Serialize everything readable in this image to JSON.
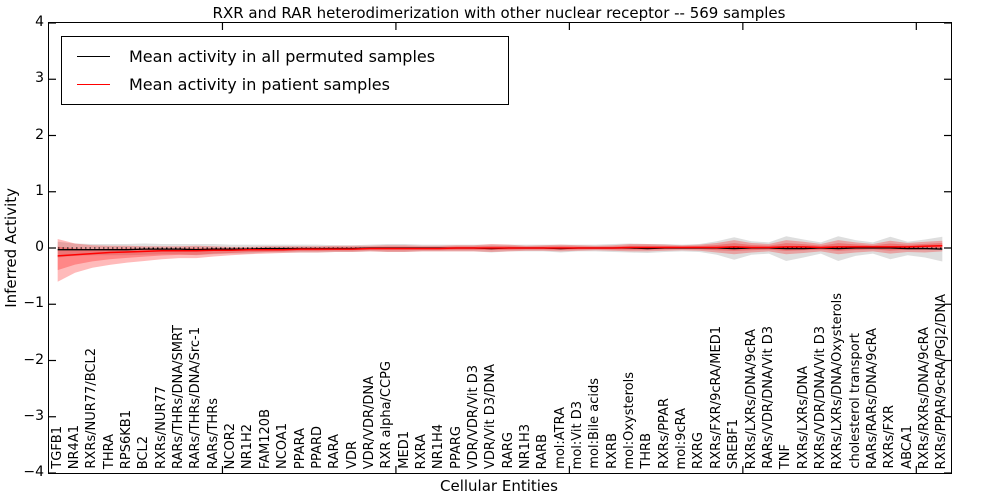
{
  "chart_data": {
    "type": "line",
    "title": "RXR and RAR heterodimerization with other nuclear receptor -- 569 samples",
    "xlabel": "Cellular Entities",
    "ylabel": "Inferred Activity",
    "ylim": [
      -4,
      4
    ],
    "yticks": [
      4,
      3,
      2,
      1,
      0,
      -1,
      -2,
      -3,
      -4
    ],
    "x_major_ticks": [
      10,
      20,
      30,
      40,
      50
    ],
    "grid": false,
    "zero_line": "black dotted",
    "legend_position": "upper left",
    "categories": [
      "TGFB1",
      "NR4A1",
      "RXRs/NUR77/BCL2",
      "THRA",
      "RPS6KB1",
      "BCL2",
      "RXRs/NUR77",
      "RARs/THRs/DNA/SMRT",
      "RARs/THRs/DNA/Src-1",
      "RARs/THRs",
      "NCOR2",
      "NR1H2",
      "FAM120B",
      "NCOA1",
      "PPARA",
      "PPARD",
      "RARA",
      "VDR",
      "VDR/VDR/DNA",
      "RXR alpha/CCPG",
      "MED1",
      "RXRA",
      "NR1H4",
      "PPARG",
      "VDR/VDR/Vit D3",
      "VDR/Vit D3/DNA",
      "RARG",
      "NR1H3",
      "RARB",
      "mol:ATRA",
      "mol:Vit D3",
      "mol:Bile acids",
      "RXRB",
      "mol:Oxysterols",
      "THRB",
      "RXRs/PPAR",
      "mol:9cRA",
      "RXRG",
      "RXRs/FXR/9cRA/MED1",
      "SREBF1",
      "RXRs/LXRs/DNA/9cRA",
      "RARs/VDR/DNA/Vit D3",
      "TNF",
      "RXRs/LXRs/DNA",
      "RXRs/VDR/DNA/Vit D3",
      "RXRs/LXRs/DNA/Oxysterols",
      "cholesterol transport",
      "RARs/RARs/DNA/9cRA",
      "RXRs/FXR",
      "ABCA1",
      "RXRs/RXRs/DNA/9cRA",
      "RXRs/PPAR/9cRA/PGJ2/DNA"
    ],
    "series": [
      {
        "name": "Mean activity in all permuted samples",
        "color": "#000000",
        "values": [
          -0.03,
          -0.03,
          -0.03,
          -0.03,
          -0.03,
          -0.02,
          -0.02,
          -0.02,
          -0.03,
          -0.02,
          -0.02,
          -0.02,
          -0.01,
          -0.01,
          -0.01,
          -0.01,
          -0.01,
          -0.01,
          0,
          0,
          0,
          0,
          0,
          0,
          0,
          -0.01,
          0,
          0,
          0,
          -0.01,
          0,
          0,
          0,
          0,
          -0.01,
          0,
          0,
          0,
          0,
          -0.01,
          0,
          0,
          -0.01,
          -0.01,
          0,
          -0.01,
          0,
          0,
          0,
          -0.01,
          -0.01,
          -0.02
        ]
      },
      {
        "name": "Mean activity in patient samples",
        "color": "#ff0000",
        "values": [
          -0.14,
          -0.12,
          -0.1,
          -0.08,
          -0.07,
          -0.06,
          -0.05,
          -0.05,
          -0.05,
          -0.04,
          -0.04,
          -0.03,
          -0.03,
          -0.03,
          -0.02,
          -0.02,
          -0.02,
          -0.02,
          -0.01,
          -0.01,
          -0.01,
          -0.01,
          -0.01,
          0,
          0,
          0,
          0,
          0,
          0,
          0,
          0,
          0,
          0,
          0.01,
          0.01,
          0.01,
          0.01,
          0.01,
          0.01,
          0.02,
          0.01,
          0.01,
          0.02,
          0.02,
          0.01,
          0.02,
          0.02,
          0.02,
          0.02,
          0.02,
          0.03,
          0.04
        ]
      }
    ],
    "bands": [
      {
        "name": "permuted-std-band",
        "color": "rgba(0,0,0,0.13)",
        "half_width": [
          0.14,
          0.11,
          0.1,
          0.1,
          0.1,
          0.1,
          0.09,
          0.09,
          0.1,
          0.09,
          0.08,
          0.08,
          0.07,
          0.07,
          0.07,
          0.07,
          0.06,
          0.06,
          0.06,
          0.07,
          0.07,
          0.06,
          0.06,
          0.06,
          0.06,
          0.07,
          0.06,
          0.06,
          0.06,
          0.07,
          0.06,
          0.06,
          0.07,
          0.08,
          0.08,
          0.07,
          0.06,
          0.07,
          0.12,
          0.2,
          0.12,
          0.1,
          0.22,
          0.16,
          0.1,
          0.22,
          0.14,
          0.1,
          0.2,
          0.12,
          0.16,
          0.22
        ]
      },
      {
        "name": "patient-std-band",
        "color": "rgba(255,0,0,0.27)",
        "hi": [
          0.16,
          0.08,
          0.05,
          0.04,
          0.04,
          0.03,
          0.03,
          0.03,
          0.04,
          0.03,
          0.02,
          0.02,
          0.03,
          0.03,
          0.03,
          0.03,
          0.04,
          0.04,
          0.04,
          0.05,
          0.05,
          0.04,
          0.04,
          0.05,
          0.05,
          0.07,
          0.06,
          0.04,
          0.05,
          0.06,
          0.05,
          0.04,
          0.05,
          0.07,
          0.07,
          0.06,
          0.05,
          0.06,
          0.09,
          0.14,
          0.09,
          0.07,
          0.14,
          0.11,
          0.07,
          0.14,
          0.1,
          0.07,
          0.13,
          0.09,
          0.11,
          0.13
        ],
        "lo": [
          -0.6,
          -0.44,
          -0.35,
          -0.3,
          -0.26,
          -0.23,
          -0.2,
          -0.18,
          -0.18,
          -0.15,
          -0.13,
          -0.11,
          -0.1,
          -0.09,
          -0.08,
          -0.08,
          -0.07,
          -0.07,
          -0.06,
          -0.07,
          -0.07,
          -0.06,
          -0.06,
          -0.06,
          -0.06,
          -0.07,
          -0.06,
          -0.05,
          -0.05,
          -0.06,
          -0.05,
          -0.04,
          -0.05,
          -0.06,
          -0.06,
          -0.05,
          -0.04,
          -0.05,
          -0.08,
          -0.11,
          -0.08,
          -0.06,
          -0.11,
          -0.09,
          -0.06,
          -0.11,
          -0.08,
          -0.06,
          -0.1,
          -0.07,
          -0.08,
          -0.06
        ]
      }
    ],
    "inner_band_scale": 0.55,
    "legend": [
      {
        "label": "Mean activity in all permuted samples",
        "color": "#000000"
      },
      {
        "label": "Mean activity in patient samples",
        "color": "#ff0000"
      }
    ]
  }
}
